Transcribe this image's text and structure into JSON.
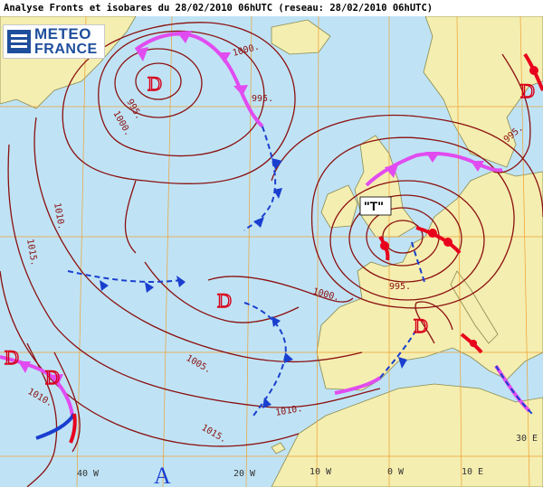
{
  "header": {
    "title": "Analyse Fronts et isobares du 28/02/2010 06hUTC (reseau: 28/02/2010 06hUTC)"
  },
  "logo": {
    "line1": "METEO",
    "line2": "FRANCE"
  },
  "isobar_labels": [
    "1000.",
    "995.",
    "1000.",
    "995.",
    "1010.",
    "1015.",
    "1000.",
    "995.",
    "1005.",
    "1010.",
    "1010.",
    "1015.",
    "995."
  ],
  "pressure_systems": {
    "lows": [
      "D",
      "D",
      "D",
      "D",
      "D",
      "D"
    ],
    "high": "A",
    "named": "\"T\""
  },
  "grid_labels": [
    "40 W",
    "20 W",
    "10 W",
    "0 W",
    "10 E",
    "30 E"
  ],
  "colors": {
    "sea": "#bfe3f5",
    "land": "#f4eeb0",
    "isobar": "#8b1010",
    "warm_front": "#e8001c",
    "cold_front": "#1a3fcf",
    "occlusion": "#e14cf0",
    "grid": "#f0a030"
  }
}
